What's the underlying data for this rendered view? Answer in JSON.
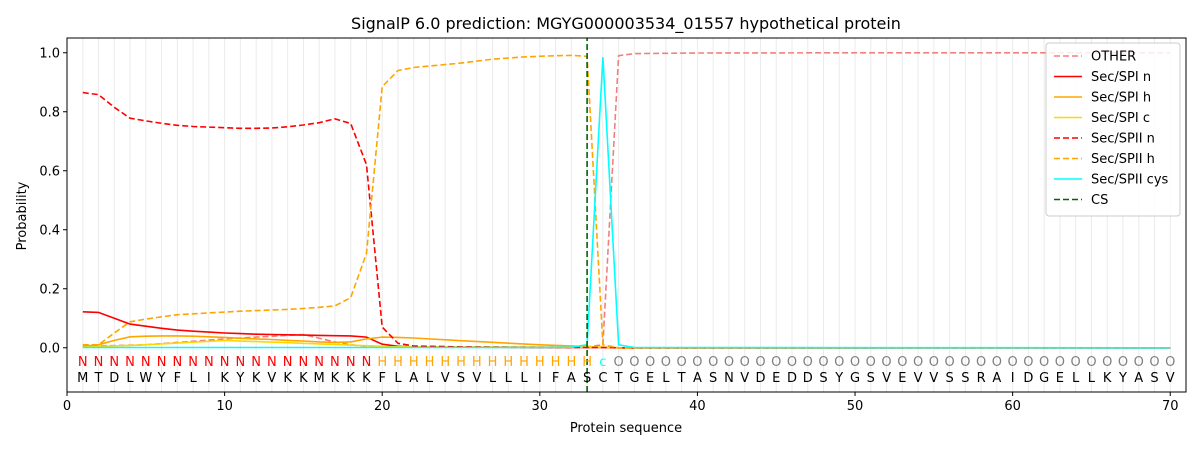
{
  "chart_data": {
    "type": "line",
    "title": "SignalP 6.0 prediction: MGYG000003534_01557 hypothetical protein",
    "xlabel": "Protein sequence",
    "ylabel": "Probability",
    "xlim": [
      0,
      71
    ],
    "ylim": [
      -0.15,
      1.05
    ],
    "x_ticks": [
      0,
      10,
      20,
      30,
      40,
      50,
      60,
      70
    ],
    "y_ticks": [
      0.0,
      0.2,
      0.4,
      0.6,
      0.8,
      1.0
    ],
    "x_tick_labels": [
      "0",
      "10",
      "20",
      "30",
      "40",
      "50",
      "60",
      "70"
    ],
    "y_tick_labels": [
      "0.0",
      "0.2",
      "0.4",
      "0.6",
      "0.8",
      "1.0"
    ],
    "grid": "vertical lines at each residue",
    "legend_position": "top-right",
    "sequence": [
      "M",
      "T",
      "D",
      "L",
      "W",
      "Y",
      "F",
      "L",
      "I",
      "K",
      "Y",
      "K",
      "V",
      "K",
      "K",
      "M",
      "K",
      "K",
      "K",
      "F",
      "L",
      "A",
      "L",
      "V",
      "S",
      "V",
      "L",
      "L",
      "L",
      "I",
      "F",
      "A",
      "S",
      "C",
      "T",
      "G",
      "E",
      "L",
      "T",
      "A",
      "S",
      "N",
      "V",
      "D",
      "E",
      "D",
      "D",
      "S",
      "Y",
      "G",
      "S",
      "V",
      "E",
      "V",
      "V",
      "S",
      "S",
      "R",
      "A",
      "I",
      "D",
      "G",
      "E",
      "L",
      "L",
      "K",
      "Y",
      "A",
      "S",
      "V"
    ],
    "region_labels": [
      "N",
      "N",
      "N",
      "N",
      "N",
      "N",
      "N",
      "N",
      "N",
      "N",
      "N",
      "N",
      "N",
      "N",
      "N",
      "N",
      "N",
      "N",
      "N",
      "H",
      "H",
      "H",
      "H",
      "H",
      "H",
      "H",
      "H",
      "H",
      "H",
      "H",
      "H",
      "H",
      "H",
      "c",
      "O",
      "O",
      "O",
      "O",
      "O",
      "O",
      "O",
      "O",
      "O",
      "O",
      "O",
      "O",
      "O",
      "O",
      "O",
      "O",
      "O",
      "O",
      "O",
      "O",
      "O",
      "O",
      "O",
      "O",
      "O",
      "O",
      "O",
      "O",
      "O",
      "O",
      "O",
      "O",
      "O",
      "O",
      "O",
      "O"
    ],
    "region_colors": {
      "N": "#ff0000",
      "H": "#ffa500",
      "c": "#00ffff",
      "O": "#808080"
    },
    "cleavage_site": 33,
    "series": [
      {
        "name": "OTHER",
        "color": "#f08080",
        "dash": "dashed",
        "x": [
          1,
          5,
          10,
          15,
          17,
          18,
          19,
          20,
          21,
          25,
          30,
          33,
          34,
          35,
          36,
          40,
          50,
          60,
          70
        ],
        "y": [
          0.005,
          0.01,
          0.03,
          0.045,
          0.02,
          0.01,
          0.005,
          0.003,
          0.002,
          0.002,
          0.002,
          0.003,
          0.01,
          0.99,
          0.997,
          0.999,
          1.0,
          1.0,
          1.0
        ]
      },
      {
        "name": "Sec/SPI n",
        "color": "#ff0000",
        "dash": "solid",
        "x": [
          1,
          2,
          3,
          4,
          5,
          6,
          7,
          8,
          9,
          10,
          11,
          12,
          13,
          14,
          15,
          16,
          17,
          18,
          19,
          20,
          21,
          22,
          25,
          30,
          33,
          34,
          35,
          70
        ],
        "y": [
          0.122,
          0.12,
          0.1,
          0.08,
          0.073,
          0.066,
          0.06,
          0.056,
          0.053,
          0.05,
          0.048,
          0.046,
          0.045,
          0.044,
          0.043,
          0.042,
          0.041,
          0.04,
          0.036,
          0.012,
          0.005,
          0.003,
          0.002,
          0.001,
          0.001,
          0.001,
          0.0,
          0.0
        ]
      },
      {
        "name": "Sec/SPI h",
        "color": "#ffa500",
        "dash": "solid",
        "x": [
          1,
          2,
          3,
          4,
          5,
          6,
          7,
          8,
          9,
          10,
          11,
          12,
          13,
          14,
          15,
          16,
          17,
          18,
          19,
          20,
          21,
          22,
          25,
          30,
          33,
          34,
          35,
          70
        ],
        "y": [
          0.005,
          0.01,
          0.025,
          0.037,
          0.039,
          0.04,
          0.04,
          0.039,
          0.037,
          0.035,
          0.032,
          0.03,
          0.028,
          0.025,
          0.023,
          0.02,
          0.018,
          0.02,
          0.03,
          0.036,
          0.035,
          0.033,
          0.024,
          0.01,
          0.004,
          0.002,
          0.0,
          0.0
        ]
      },
      {
        "name": "Sec/SPI c",
        "color": "#ffd700",
        "dash": "solid",
        "x": [
          1,
          5,
          10,
          15,
          20,
          25,
          30,
          33,
          34,
          35,
          70
        ],
        "y": [
          0.002,
          0.01,
          0.025,
          0.015,
          0.005,
          0.003,
          0.002,
          0.003,
          0.002,
          0.0,
          0.0
        ]
      },
      {
        "name": "Sec/SPII n",
        "color": "#ff0000",
        "dash": "dashed",
        "x": [
          1,
          2,
          3,
          4,
          5,
          6,
          7,
          8,
          9,
          10,
          11,
          12,
          13,
          14,
          15,
          16,
          17,
          18,
          19,
          20,
          21,
          22,
          25,
          30,
          33,
          34,
          35,
          70
        ],
        "y": [
          0.865,
          0.858,
          0.815,
          0.778,
          0.769,
          0.761,
          0.754,
          0.75,
          0.748,
          0.746,
          0.744,
          0.744,
          0.745,
          0.749,
          0.755,
          0.763,
          0.776,
          0.76,
          0.62,
          0.07,
          0.015,
          0.006,
          0.003,
          0.001,
          0.001,
          0.001,
          0.0,
          0.0
        ]
      },
      {
        "name": "Sec/SPII h",
        "color": "#ffa500",
        "dash": "dashed",
        "x": [
          1,
          2,
          3,
          4,
          5,
          6,
          7,
          8,
          9,
          10,
          11,
          12,
          13,
          14,
          15,
          16,
          17,
          18,
          19,
          20,
          21,
          22,
          23,
          25,
          27,
          29,
          31,
          32,
          33,
          34,
          35,
          70
        ],
        "y": [
          0.01,
          0.01,
          0.05,
          0.088,
          0.097,
          0.105,
          0.112,
          0.115,
          0.118,
          0.121,
          0.124,
          0.126,
          0.128,
          0.13,
          0.133,
          0.137,
          0.142,
          0.17,
          0.32,
          0.885,
          0.94,
          0.95,
          0.955,
          0.965,
          0.978,
          0.986,
          0.99,
          0.991,
          0.988,
          0.01,
          0.0,
          0.0
        ]
      },
      {
        "name": "Sec/SPII cys",
        "color": "#00ffff",
        "dash": "solid",
        "x": [
          1,
          10,
          20,
          30,
          32,
          33,
          34,
          35,
          36,
          70
        ],
        "y": [
          0.001,
          0.001,
          0.001,
          0.001,
          0.002,
          0.01,
          0.985,
          0.01,
          0.001,
          0.0
        ]
      },
      {
        "name": "CS",
        "color": "#006400",
        "dash": "dashed",
        "x": [
          33,
          33
        ],
        "y": [
          -0.15,
          1.05
        ]
      }
    ]
  }
}
